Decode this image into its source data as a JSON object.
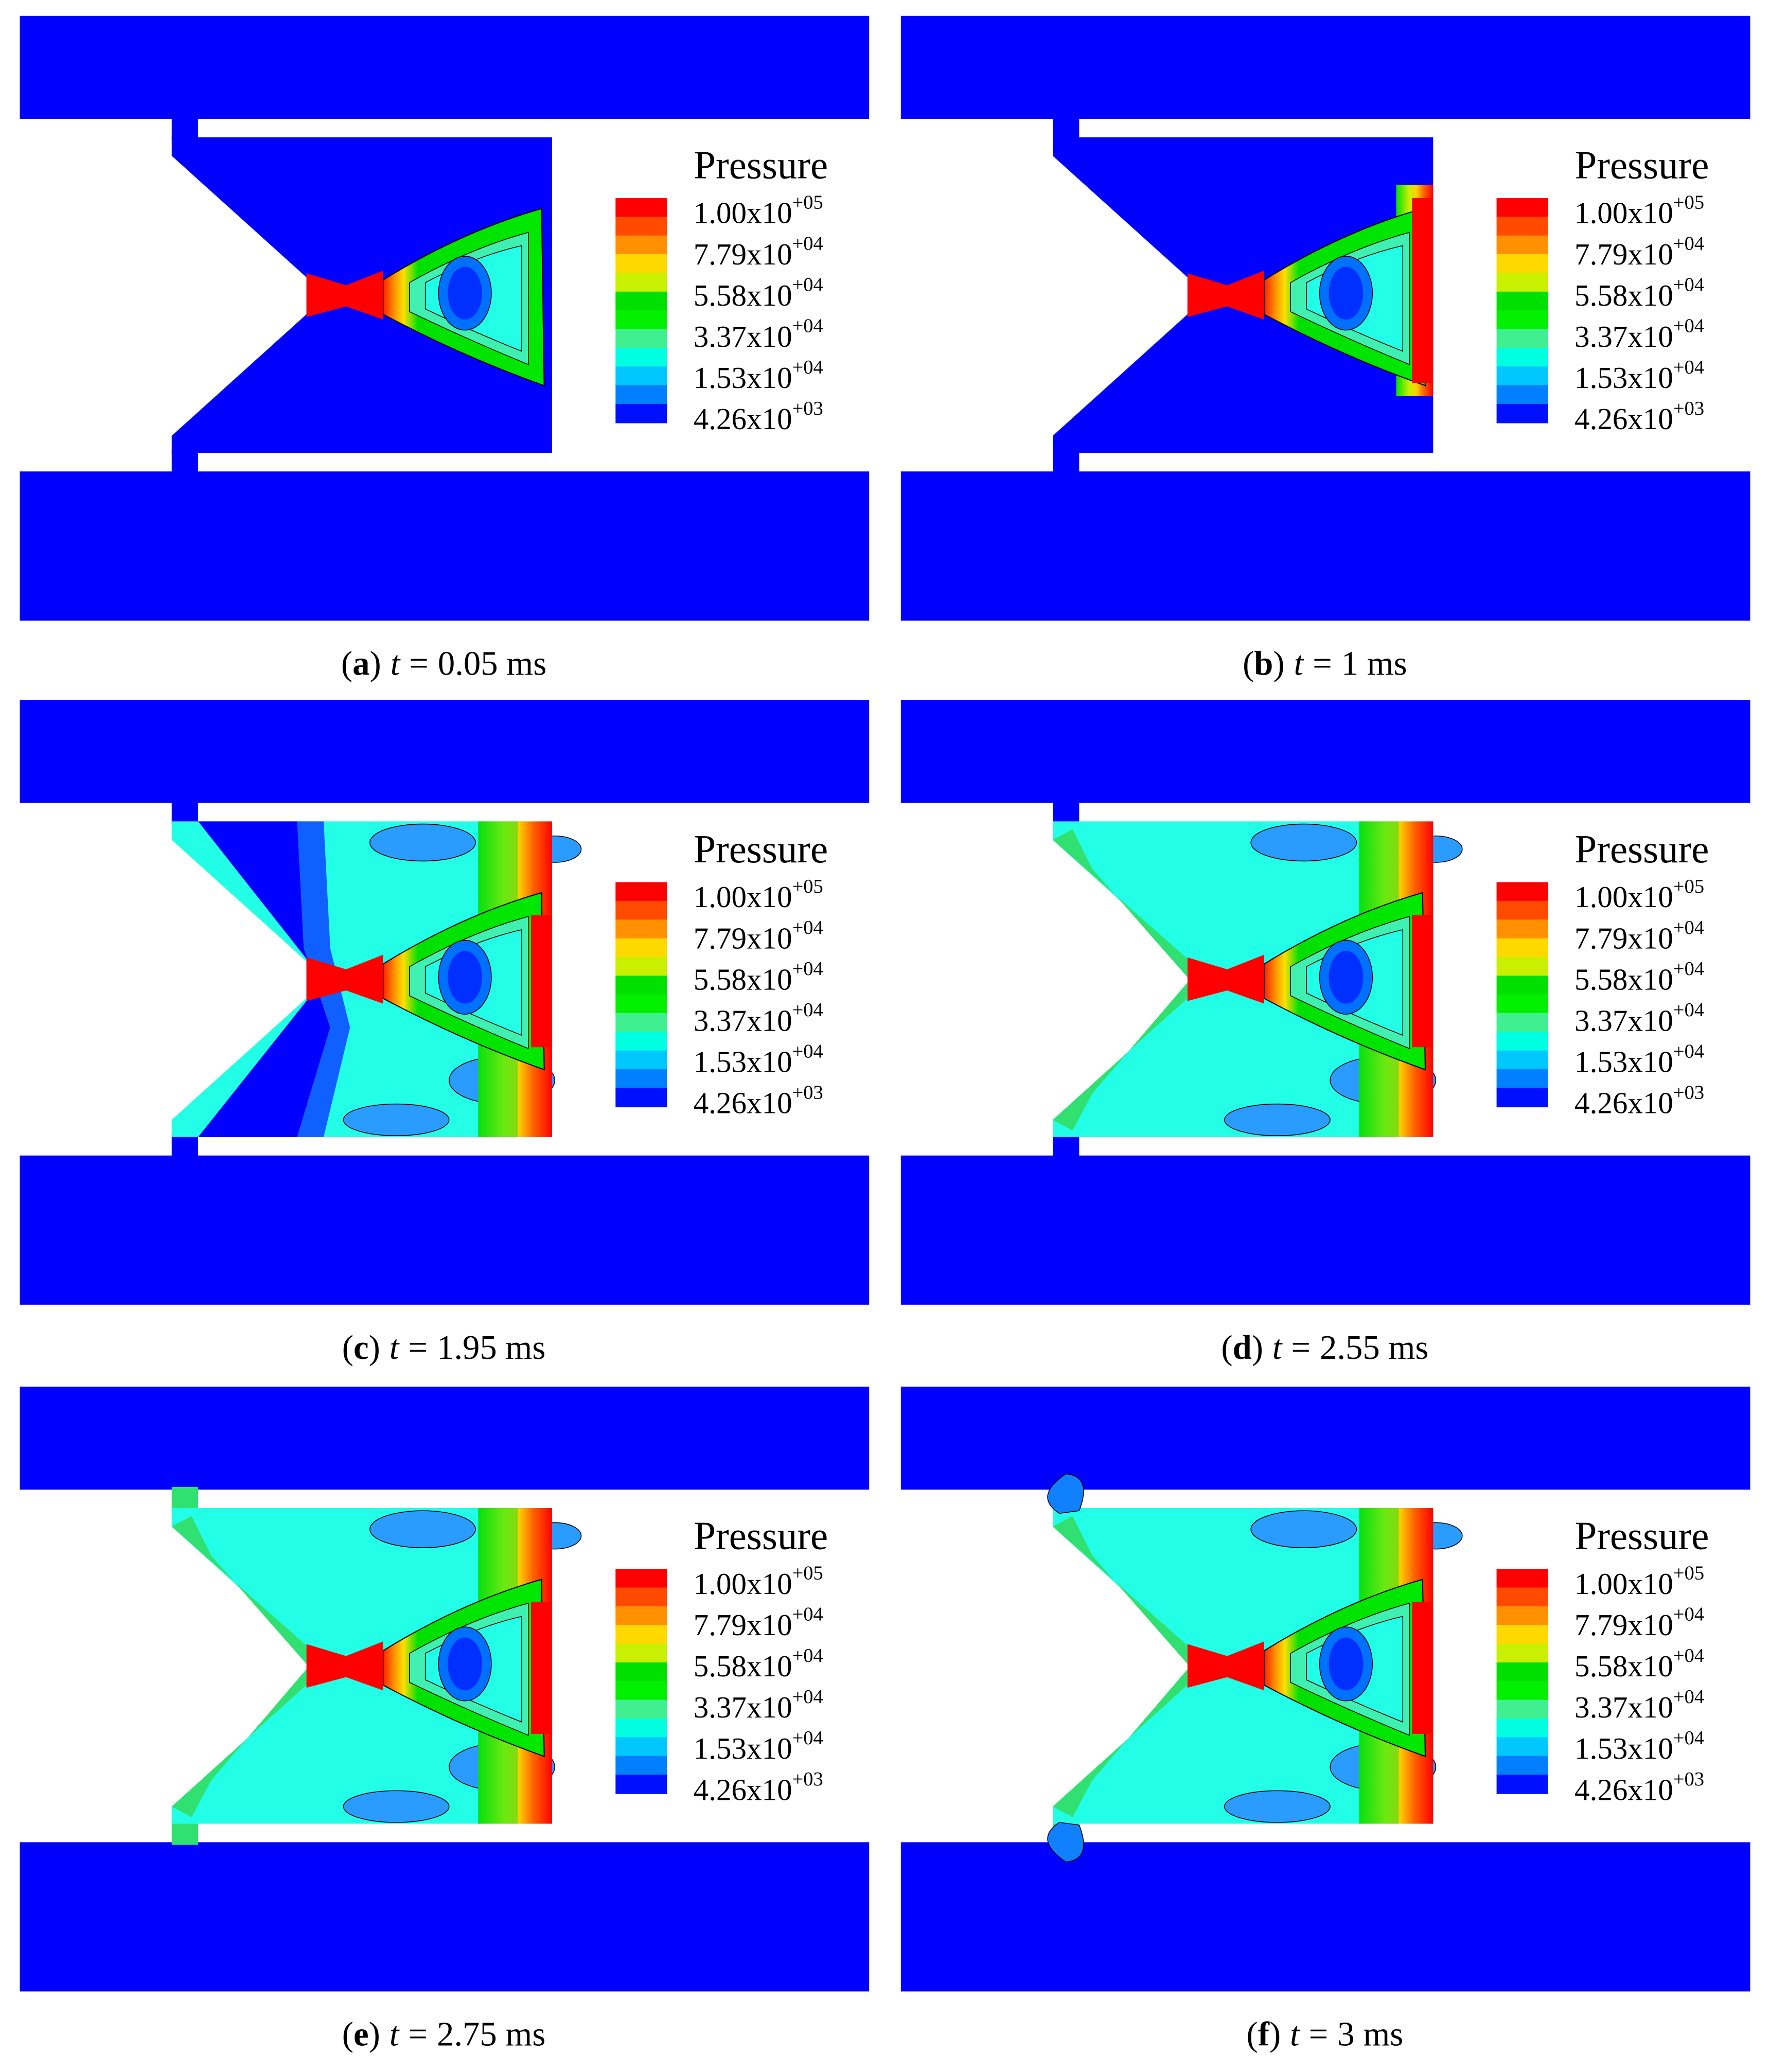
{
  "legend": {
    "title": "Pressure",
    "colors": [
      "#ff0000",
      "#ff4a00",
      "#ff9000",
      "#ffd800",
      "#c8f000",
      "#00e000",
      "#00f000",
      "#40f090",
      "#00ffe0",
      "#00c8ff",
      "#0080ff",
      "#0010ff"
    ],
    "labels": [
      {
        "base": "1.00x10",
        "exp": "+05"
      },
      {
        "base": "7.79x10",
        "exp": "+04"
      },
      {
        "base": "5.58x10",
        "exp": "+04"
      },
      {
        "base": "3.37x10",
        "exp": "+04"
      },
      {
        "base": "1.53x10",
        "exp": "+04"
      },
      {
        "base": "4.26x10",
        "exp": "+03"
      }
    ]
  },
  "caption_format": {
    "open": "(",
    "close": ")",
    "variable": "t",
    "equals": "="
  },
  "panels": [
    {
      "letter": "a",
      "time": "0.05 ms"
    },
    {
      "letter": "b",
      "time": "1 ms"
    },
    {
      "letter": "c",
      "time": "1.95 ms"
    },
    {
      "letter": "d",
      "time": "2.55 ms"
    },
    {
      "letter": "e",
      "time": "2.75 ms"
    },
    {
      "letter": "f",
      "time": "3 ms"
    }
  ]
}
